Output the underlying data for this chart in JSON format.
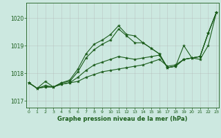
{
  "xlabel": "Graphe pression niveau de la mer (hPa)",
  "ylim": [
    1016.75,
    1020.55
  ],
  "xlim": [
    -0.3,
    23.3
  ],
  "yticks": [
    1017,
    1018,
    1019,
    1020
  ],
  "xticks": [
    0,
    1,
    2,
    3,
    4,
    5,
    6,
    7,
    8,
    9,
    10,
    11,
    12,
    13,
    14,
    15,
    16,
    17,
    18,
    19,
    20,
    21,
    22,
    23
  ],
  "background_color": "#cce8e0",
  "grid_color": "#b0b0b0",
  "line_color": "#1a5c1a",
  "series": [
    [
      1017.65,
      1017.45,
      1017.7,
      1017.5,
      1017.6,
      1017.65,
      1017.7,
      1017.85,
      1017.95,
      1018.05,
      1018.1,
      1018.15,
      1018.2,
      1018.25,
      1018.3,
      1018.4,
      1018.5,
      1018.25,
      1018.3,
      1018.5,
      1018.55,
      1018.5,
      1019.0,
      1020.2
    ],
    [
      1017.65,
      1017.45,
      1017.55,
      1017.5,
      1017.6,
      1017.65,
      1017.85,
      1018.1,
      1018.3,
      1018.4,
      1018.5,
      1018.6,
      1018.55,
      1018.5,
      1018.55,
      1018.6,
      1018.65,
      1018.2,
      1018.25,
      1018.5,
      1018.55,
      1018.6,
      1019.45,
      1020.2
    ],
    [
      1017.65,
      1017.45,
      1017.5,
      1017.5,
      1017.65,
      1017.7,
      1018.05,
      1018.55,
      1018.85,
      1019.05,
      1019.2,
      1019.6,
      1019.35,
      1019.1,
      1019.1,
      1018.9,
      1018.7,
      1018.2,
      1018.25,
      1018.5,
      1018.55,
      1018.6,
      1019.45,
      1020.2
    ],
    [
      1017.65,
      1017.45,
      1017.5,
      1017.5,
      1017.65,
      1017.75,
      1018.15,
      1018.7,
      1019.05,
      1019.2,
      1019.4,
      1019.72,
      1019.4,
      1019.35,
      1019.1,
      1018.9,
      1018.7,
      1018.2,
      1018.25,
      1019.0,
      1018.55,
      1018.6,
      1019.45,
      1020.2
    ]
  ]
}
